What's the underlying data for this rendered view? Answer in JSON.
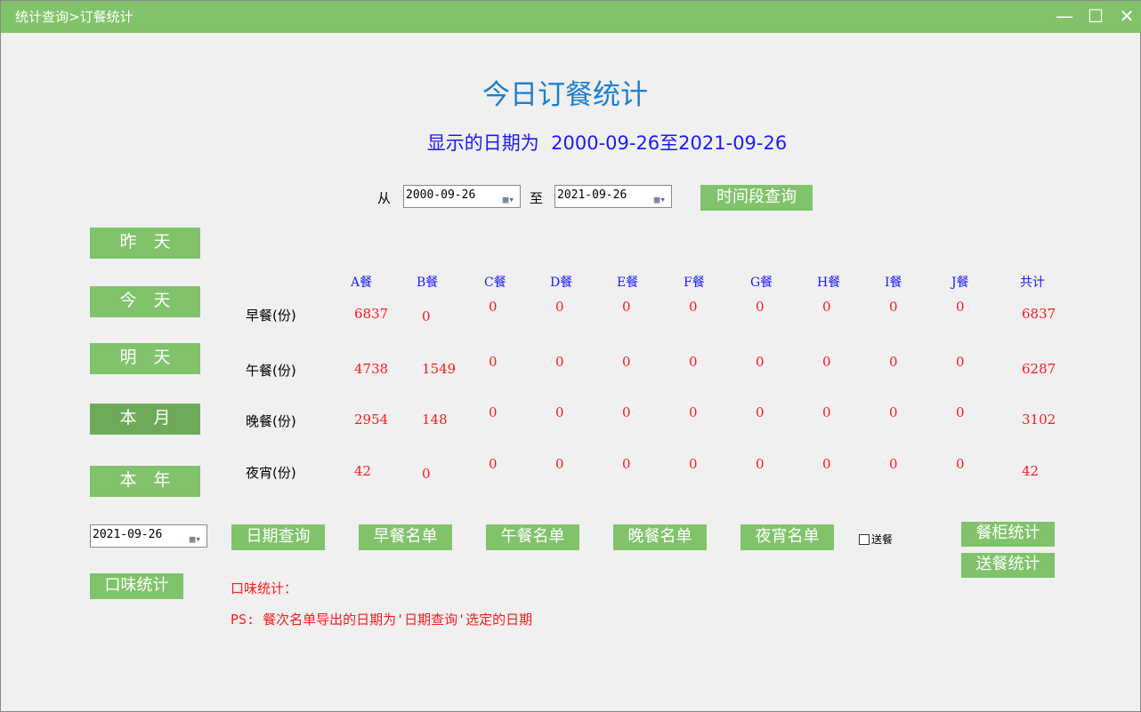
{
  "window": {
    "title": "统计查询>订餐统计",
    "minimize": "—",
    "maximize": "☐",
    "close": "✕"
  },
  "heading": "今日订餐统计",
  "range_text": "显示的日期为  2000-09-26至2021-09-26",
  "range": {
    "from_label": "从",
    "from": "2000-09-26",
    "to_label": "至",
    "to": "2021-09-26",
    "query_button": "时间段查询"
  },
  "side_buttons": [
    {
      "label": "昨　天"
    },
    {
      "label": "今　天"
    },
    {
      "label": "明　天"
    },
    {
      "label": "本　月",
      "active": true
    },
    {
      "label": "本　年"
    }
  ],
  "table": {
    "columns": [
      "A餐",
      "B餐",
      "C餐",
      "D餐",
      "E餐",
      "F餐",
      "G餐",
      "H餐",
      "I餐",
      "J餐",
      "共计"
    ],
    "rows": [
      {
        "label": "早餐(份)",
        "values": [
          "6837",
          "0",
          "0",
          "0",
          "0",
          "0",
          "0",
          "0",
          "0",
          "0",
          "6837"
        ]
      },
      {
        "label": "午餐(份)",
        "values": [
          "4738",
          "1549",
          "0",
          "0",
          "0",
          "0",
          "0",
          "0",
          "0",
          "0",
          "6287"
        ]
      },
      {
        "label": "晚餐(份)",
        "values": [
          "2954",
          "148",
          "0",
          "0",
          "0",
          "0",
          "0",
          "0",
          "0",
          "0",
          "3102"
        ]
      },
      {
        "label": "夜宵(份)",
        "values": [
          "42",
          "0",
          "0",
          "0",
          "0",
          "0",
          "0",
          "0",
          "0",
          "0",
          "42"
        ]
      }
    ]
  },
  "bottom": {
    "date": "2021-09-26",
    "date_query": "日期查询",
    "breakfast_list": "早餐名单",
    "lunch_list": "午餐名单",
    "dinner_list": "晚餐名单",
    "supper_list": "夜宵名单",
    "delivery_checkbox": "送餐",
    "delivery_checked": false,
    "cabinet_stats": "餐柜统计",
    "delivery_stats": "送餐统计",
    "taste_stats": "口味统计",
    "taste_label": "口味统计：",
    "ps": "PS: 餐次名单导出的日期为'日期查询'选定的日期"
  },
  "colors": {
    "accent": "#80c36a",
    "heading": "#1a7fd4",
    "blue_text": "#1a1aff",
    "value": "#ff1a1a"
  }
}
